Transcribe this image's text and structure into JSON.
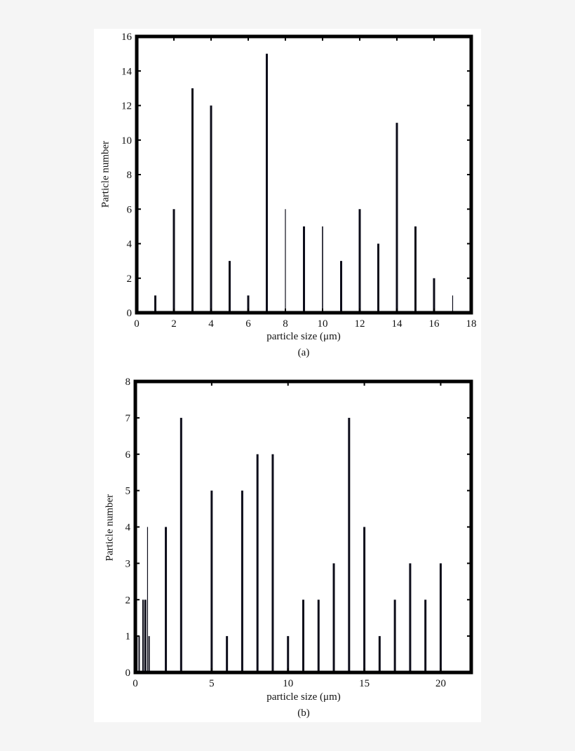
{
  "chart_data": [
    {
      "id": "a",
      "type": "bar",
      "caption": "(a)",
      "title": "",
      "xlabel": "particle size (μm)",
      "ylabel": "Particle number",
      "xlim": [
        0,
        18
      ],
      "ylim": [
        0,
        16
      ],
      "xticks": [
        0,
        2,
        4,
        6,
        8,
        10,
        12,
        14,
        16,
        18
      ],
      "yticks": [
        0,
        2,
        4,
        6,
        8,
        10,
        12,
        14,
        16
      ],
      "grid": false,
      "legend": null,
      "x": [
        0,
        1,
        2,
        3,
        4,
        5,
        6,
        7,
        8,
        9,
        10,
        11,
        12,
        13,
        14,
        15,
        16,
        17
      ],
      "values": [
        1,
        1,
        6,
        13,
        12,
        3,
        1,
        15,
        6,
        5,
        5,
        3,
        6,
        4,
        11,
        5,
        2,
        1
      ],
      "bar_widths": [
        3,
        3,
        3,
        3,
        3,
        3,
        3,
        3,
        1.2,
        3,
        1.6,
        3,
        3,
        3,
        3,
        3,
        3,
        1.2
      ],
      "bar_color": "#0d0d1a"
    },
    {
      "id": "b",
      "type": "bar",
      "caption": "(b)",
      "title": "",
      "xlabel": "particle size (μm)",
      "ylabel": "Particle number",
      "xlim": [
        0,
        22
      ],
      "ylim": [
        0,
        8
      ],
      "xticks": [
        0,
        5,
        10,
        15,
        20
      ],
      "yticks": [
        0,
        1,
        2,
        3,
        4,
        5,
        6,
        7,
        8
      ],
      "grid": false,
      "legend": null,
      "x": [
        0.1,
        0.25,
        0.5,
        0.65,
        0.8,
        0.9,
        2,
        3,
        5,
        6,
        7,
        8,
        9,
        10,
        11,
        12,
        13,
        14,
        15,
        16,
        17,
        18,
        19,
        20
      ],
      "values": [
        1,
        1,
        2,
        2,
        4,
        1,
        4,
        7,
        5,
        1,
        5,
        6,
        6,
        1,
        2,
        2,
        3,
        7,
        4,
        1,
        2,
        3,
        2,
        3
      ],
      "bar_widths": [
        2,
        2,
        2,
        3,
        1.2,
        2,
        3,
        3,
        3,
        3,
        3,
        3,
        3,
        3,
        3,
        3,
        3,
        3,
        3,
        3,
        3,
        3,
        3,
        3
      ],
      "bar_color": "#0d0d1a"
    }
  ]
}
